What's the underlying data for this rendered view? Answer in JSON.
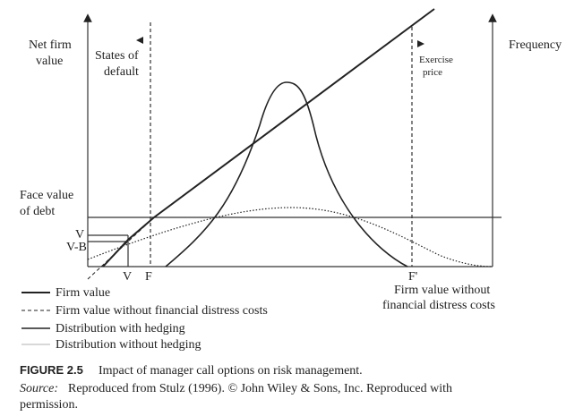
{
  "labels": {
    "y_axis": [
      "Net firm",
      "value"
    ],
    "states": [
      "States of",
      "default"
    ],
    "exercise": [
      "Exercise",
      "price"
    ],
    "frequency": "Frequency",
    "face_value": [
      "Face value",
      "of debt"
    ],
    "v_left": "V",
    "vb_left": "V-B",
    "v_bottom": "V",
    "f_bottom": "F",
    "fprime_bottom": "F'",
    "firm_without": [
      "Firm value without",
      "financial distress costs"
    ]
  },
  "legend": [
    "Firm value",
    "Firm value without financial distress costs",
    "Distribution with hedging",
    "Distribution without hedging"
  ],
  "caption": {
    "figure": "FIGURE 2.5",
    "title": "Impact of manager call options on risk management.",
    "source_label": "Source:",
    "source_text": "Reproduced from Stulz (1996). © John Wiley & Sons, Inc. Reproduced with",
    "source_text2": "permission."
  }
}
